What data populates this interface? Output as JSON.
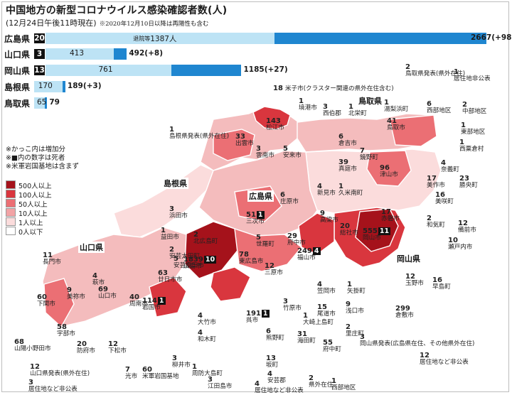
{
  "title": "中国地方の新型コロナウイルス感染確認者数(人)",
  "subtitle": "(12月24日午後11時現在)",
  "subtitle_note": "※2020年12月10日以降は再陽性も含む",
  "note_hiroshima": "退院等",
  "chart_data": [
    {
      "type": "bar",
      "orientation": "horizontal-stacked",
      "categories": [
        "広島県",
        "山口県",
        "岡山県",
        "島根県",
        "鳥取県"
      ],
      "deaths": [
        20,
        3,
        13,
        null,
        null
      ],
      "series": [
        {
          "name": "退院等",
          "values": [
            1387,
            413,
            761,
            170,
            65
          ]
        },
        {
          "name": "",
          "values": [
            1280,
            79,
            424,
            19,
            14
          ]
        }
      ],
      "totals": [
        2667,
        492,
        1185,
        189,
        79
      ],
      "increase": [
        98,
        8,
        27,
        3,
        null
      ],
      "total_labels": [
        "2667(+98)",
        "492(+8)",
        "1185(+27)",
        "189(+3)",
        "79"
      ],
      "seg_labels": [
        "1387人",
        "413",
        "761",
        "170",
        "65"
      ],
      "colors": {
        "recovered": "#bde3f5",
        "active": "#1f86d0",
        "deaths": "#111111"
      }
    },
    {
      "type": "choropleth",
      "legend": [
        {
          "label": "500人以上",
          "color": "#a5121b"
        },
        {
          "label": "100人以上",
          "color": "#d9363e"
        },
        {
          "label": "50人以上",
          "color": "#eb6f74"
        },
        {
          "label": "10人以上",
          "color": "#f2a3a5"
        },
        {
          "label": "1人以上",
          "color": "#fbdcdc"
        },
        {
          "label": "0人以下",
          "color": "#ffffff"
        }
      ],
      "notes": [
        "※かっこ内は増加分",
        "※■内の数字は死者",
        "※米軍岩国基地は含まず"
      ],
      "regions": [
        "島根県",
        "広島県",
        "山口県",
        "岡山県",
        "鳥取県"
      ],
      "labels": [
        {
          "value": "18",
          "name": "米子市(クラスター関連の県外在住含む)"
        },
        {
          "value": "1",
          "name": "境港市"
        },
        {
          "value": "3",
          "name": "西伯郡"
        },
        {
          "value": "1",
          "name": "北栄町"
        },
        {
          "value": "1",
          "name": "湯梨浜町"
        },
        {
          "value": "6",
          "name": "西部地区"
        },
        {
          "value": "143",
          "name": "松江市"
        },
        {
          "value": "41",
          "name": "鳥取市"
        },
        {
          "value": "2",
          "name": "鳥取県発表(県外在住)"
        },
        {
          "value": "1",
          "name": "居住地非公表"
        },
        {
          "value": "2",
          "name": "中部地区"
        },
        {
          "value": "1",
          "name": "東部地区"
        },
        {
          "value": "1",
          "name": "西粟倉村"
        },
        {
          "value": "4",
          "name": "奈義町"
        },
        {
          "value": "17",
          "name": "美作市"
        },
        {
          "value": "23",
          "name": "勝央町"
        },
        {
          "value": "16",
          "name": "美咲町"
        },
        {
          "value": "2",
          "name": "和気町"
        },
        {
          "value": "12",
          "name": "備前市"
        },
        {
          "value": "10",
          "name": "瀬戸内市"
        },
        {
          "value": "1",
          "name": "島根県発表(県外在住)"
        },
        {
          "value": "33",
          "name": "出雲市"
        },
        {
          "value": "3",
          "name": "雲南市"
        },
        {
          "value": "5",
          "name": "安来市"
        },
        {
          "value": "6",
          "name": "倉吉市"
        },
        {
          "value": "7",
          "name": "鏡野町"
        },
        {
          "value": "39",
          "name": "真庭市"
        },
        {
          "value": "96",
          "name": "津山市"
        },
        {
          "value": "4",
          "name": "新見市"
        },
        {
          "value": "1",
          "name": "久米南町"
        },
        {
          "value": "17",
          "name": "赤磐市"
        },
        {
          "value": "20",
          "name": "総社市"
        },
        {
          "value": "555",
          "name": "岡山市",
          "deaths": "11"
        },
        {
          "value": "9",
          "name": "高梁市"
        },
        {
          "value": "6",
          "name": "庄原市"
        },
        {
          "value": "51",
          "name": "三次市",
          "deaths": "1"
        },
        {
          "value": "5",
          "name": "世羅町"
        },
        {
          "value": "29",
          "name": "府中市"
        },
        {
          "value": "249",
          "name": "福山市",
          "deaths": "4"
        },
        {
          "value": "3",
          "name": "浜田市"
        },
        {
          "value": "1",
          "name": "益田市"
        },
        {
          "value": "2",
          "name": "北広島町"
        },
        {
          "value": "2",
          "name": "安芸太田町"
        },
        {
          "value": "5",
          "name": "安芸高田市"
        },
        {
          "value": "1839",
          "name": "広島市",
          "deaths": "10"
        },
        {
          "value": "78",
          "name": "東広島市"
        },
        {
          "value": "12",
          "name": "三原市"
        },
        {
          "value": "63",
          "name": "廿日市市"
        },
        {
          "value": "11",
          "name": "長門市"
        },
        {
          "value": "4",
          "name": "萩市"
        },
        {
          "value": "9",
          "name": "美祢市"
        },
        {
          "value": "69",
          "name": "山口市"
        },
        {
          "value": "60",
          "name": "下関市"
        },
        {
          "value": "40",
          "name": "周南市"
        },
        {
          "value": "114",
          "name": "岩国市",
          "deaths": "1"
        },
        {
          "value": "58",
          "name": "宇部市"
        },
        {
          "value": "20",
          "name": "防府市"
        },
        {
          "value": "12",
          "name": "下松市"
        },
        {
          "value": "68",
          "name": "山陽小野田市"
        },
        {
          "value": "7",
          "name": "光市"
        },
        {
          "value": "60",
          "name": "米軍岩国基地"
        },
        {
          "value": "3",
          "name": "柳井市"
        },
        {
          "value": "1",
          "name": "周防大島町"
        },
        {
          "value": "3",
          "name": "江田島市"
        },
        {
          "value": "4",
          "name": "和木町"
        },
        {
          "value": "4",
          "name": "大竹市"
        },
        {
          "value": "191",
          "name": "呉市",
          "deaths": "1"
        },
        {
          "value": "6",
          "name": "熊野町"
        },
        {
          "value": "31",
          "name": "海田町"
        },
        {
          "value": "13",
          "name": "坂町"
        },
        {
          "value": "4",
          "name": "安芸郡"
        },
        {
          "value": "3",
          "name": "竹原市"
        },
        {
          "value": "1",
          "name": "大崎上島町"
        },
        {
          "value": "15",
          "name": "尾道市"
        },
        {
          "value": "55",
          "name": "府中町"
        },
        {
          "value": "4",
          "name": "笠岡市"
        },
        {
          "value": "1",
          "name": "矢掛町"
        },
        {
          "value": "9",
          "name": "浅口市"
        },
        {
          "value": "2",
          "name": "里庄町"
        },
        {
          "value": "299",
          "name": "倉敷市"
        },
        {
          "value": "12",
          "name": "玉野市"
        },
        {
          "value": "16",
          "name": "早島町"
        },
        {
          "value": "3",
          "name": "岡山県発表(広島県在住、その他県外在住)"
        },
        {
          "value": "12",
          "name": "居住地など非公表"
        },
        {
          "value": "12",
          "name": "山口県発表(県外在住)"
        },
        {
          "value": "3",
          "name": "居住地など非公表"
        },
        {
          "value": "4",
          "name": "居住地など非公表"
        },
        {
          "value": "2",
          "name": "県外在住"
        },
        {
          "value": "1",
          "name": "西部地区"
        }
      ]
    }
  ]
}
